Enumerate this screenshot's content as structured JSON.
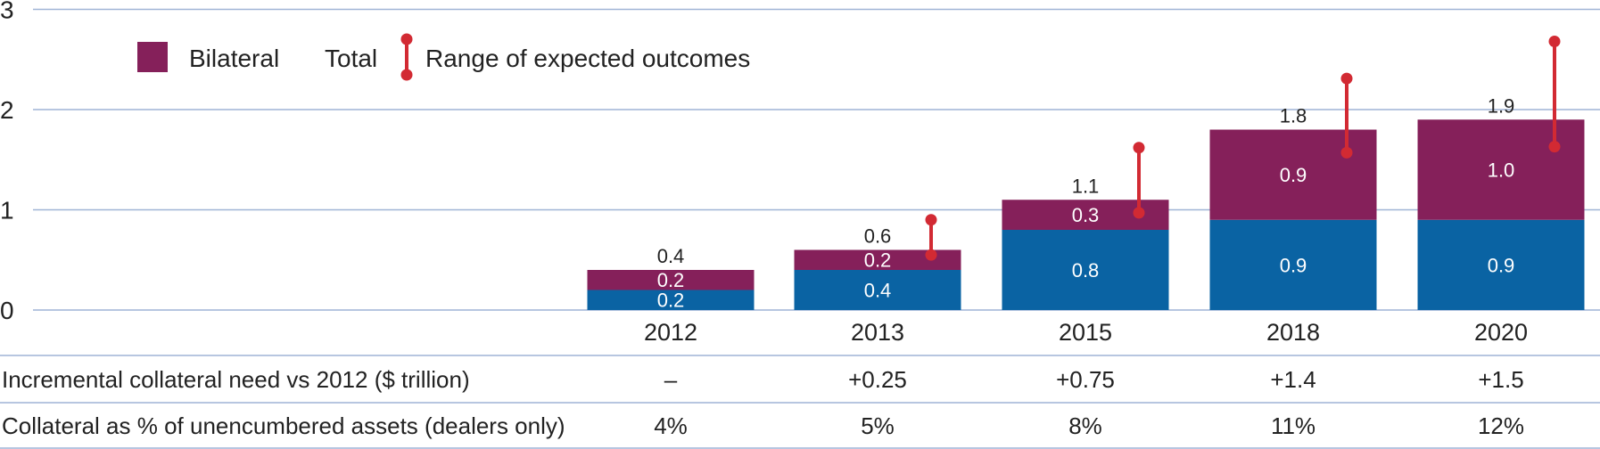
{
  "chart_data": {
    "type": "bar",
    "stacked": true,
    "categories": [
      "2012",
      "2013",
      "2015",
      "2018",
      "2020"
    ],
    "ylim": [
      0,
      3
    ],
    "yticks": [
      "0",
      "1",
      "2",
      "3"
    ],
    "grid": true,
    "legend_position": "top-left",
    "series": [
      {
        "name": "Total",
        "values": [
          0.2,
          0.4,
          0.8,
          0.9,
          0.9
        ],
        "color": "#0a63a3"
      },
      {
        "name": "Bilateral",
        "values": [
          0.2,
          0.2,
          0.3,
          0.9,
          1.0
        ],
        "color": "#85205a"
      }
    ],
    "bottom_labels": [
      "0.2",
      "0.4",
      "0.8",
      "0.9",
      "0.9"
    ],
    "segment_labels": [
      "0.2",
      "0.2",
      "0.3",
      "0.9",
      "1.0"
    ],
    "total_labels": [
      "0.4",
      "0.6",
      "1.1",
      "1.8",
      "1.9"
    ],
    "totals": [
      0.4,
      0.6,
      1.1,
      1.8,
      1.9
    ],
    "range": {
      "name": "Range of expected outcomes",
      "color": "#d22a33",
      "values": [
        null,
        [
          0.55,
          0.9
        ],
        [
          0.97,
          1.62
        ],
        [
          1.57,
          2.31
        ],
        [
          1.63,
          2.68
        ]
      ]
    },
    "legend": {
      "items": [
        "Bilateral",
        "Total",
        "Range of expected outcomes"
      ]
    },
    "table": {
      "rows": [
        {
          "label": "Incremental collateral need vs 2012 ($ trillion)",
          "values": [
            "–",
            "+0.25",
            "+0.75",
            "+1.4",
            "+1.5"
          ]
        },
        {
          "label": "Collateral as % of unencumbered assets (dealers only)",
          "values": [
            "4%",
            "5%",
            "8%",
            "11%",
            "12%"
          ]
        }
      ]
    }
  }
}
